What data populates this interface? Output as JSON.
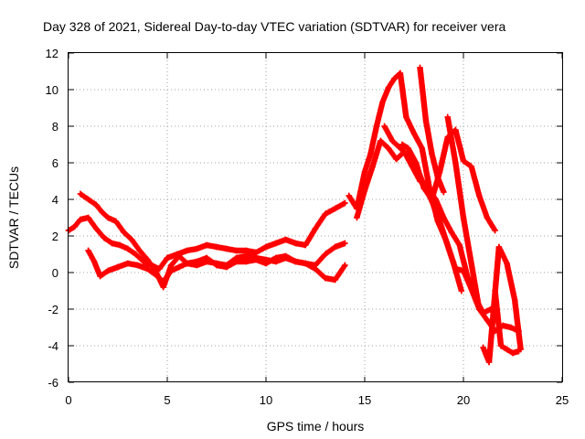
{
  "chart_data": {
    "type": "scatter",
    "title": "Day 328 of 2021, Sidereal Day-to-day VTEC variation (SDTVAR) for receiver vera",
    "xlabel": "GPS time / hours",
    "ylabel": "SDTVAR / TECUs",
    "xlim": [
      0,
      25
    ],
    "ylim": [
      -6,
      12
    ],
    "xticks": [
      "0",
      "5",
      "10",
      "15",
      "20",
      "25"
    ],
    "yticks": [
      "-6",
      "-4",
      "-2",
      "0",
      "2",
      "4",
      "6",
      "8",
      "10",
      "12"
    ],
    "grid": true,
    "marker": "plus",
    "series": [
      {
        "name": "track-1",
        "color": "#ff0000",
        "x": [
          0.0,
          0.3,
          0.6,
          1.0,
          1.4,
          1.8,
          2.2,
          2.6,
          3.0,
          3.4,
          3.8,
          4.2,
          4.6,
          5.0,
          5.5,
          6.0,
          6.5,
          7.0,
          7.5,
          8.0,
          8.5,
          9.0,
          9.5,
          10.0,
          10.5,
          11.0,
          11.5,
          12.0,
          12.5,
          13.0,
          13.5,
          14.0
        ],
        "y": [
          2.3,
          2.5,
          2.9,
          3.0,
          2.4,
          1.9,
          1.6,
          1.5,
          1.3,
          1.0,
          0.6,
          0.4,
          0.2,
          0.8,
          1.0,
          1.2,
          1.3,
          1.5,
          1.4,
          1.3,
          1.2,
          1.2,
          1.1,
          1.4,
          1.6,
          1.8,
          1.6,
          1.5,
          2.4,
          3.2,
          3.5,
          3.8
        ]
      },
      {
        "name": "track-2",
        "color": "#ff0000",
        "x": [
          0.6,
          1.0,
          1.4,
          1.7,
          2.0,
          2.4,
          2.8,
          3.2,
          3.6,
          4.0,
          4.4,
          4.8,
          5.2,
          5.6,
          6.0,
          6.5,
          7.0,
          7.5,
          8.0,
          8.5,
          9.0,
          9.5,
          10.0,
          10.5,
          11.0,
          11.5,
          12.0,
          12.5,
          13.0,
          13.5,
          14.0
        ],
        "y": [
          4.3,
          4.0,
          3.7,
          3.3,
          3.0,
          2.8,
          2.2,
          1.8,
          1.2,
          0.7,
          0.1,
          -0.8,
          0.4,
          0.9,
          0.5,
          0.6,
          0.8,
          0.4,
          0.3,
          0.6,
          0.6,
          0.7,
          0.5,
          0.8,
          0.9,
          0.6,
          0.5,
          0.4,
          1.0,
          1.4,
          1.6
        ]
      },
      {
        "name": "track-3",
        "color": "#ff0000",
        "x": [
          1.0,
          1.3,
          1.6,
          2.0,
          2.5,
          3.0,
          3.5,
          4.0,
          4.5,
          4.8,
          5.2,
          5.6,
          6.0,
          6.5,
          7.0,
          7.5,
          8.0,
          8.5,
          9.0,
          9.5,
          10.0,
          10.5,
          11.0,
          11.5,
          12.0,
          12.5,
          13.0,
          13.5,
          14.0
        ],
        "y": [
          1.2,
          0.6,
          -0.2,
          0.1,
          0.3,
          0.5,
          0.4,
          0.2,
          -0.2,
          -0.5,
          0.1,
          0.3,
          0.5,
          0.4,
          0.6,
          0.5,
          0.4,
          0.8,
          0.9,
          0.8,
          0.7,
          0.6,
          0.8,
          0.6,
          0.5,
          0.2,
          -0.3,
          -0.4,
          0.4
        ]
      },
      {
        "name": "track-4",
        "color": "#ff0000",
        "x": [
          14.2,
          14.6,
          15.0,
          15.3,
          15.6,
          15.9,
          16.2,
          16.5,
          16.8,
          17.1,
          17.5,
          17.9,
          18.3,
          18.7,
          19.1,
          19.5,
          19.9
        ],
        "y": [
          4.2,
          3.5,
          5.5,
          6.5,
          8.0,
          9.3,
          10.1,
          10.6,
          10.9,
          8.5,
          7.6,
          6.8,
          4.5,
          2.8,
          1.8,
          0.5,
          -1.0
        ]
      },
      {
        "name": "track-5",
        "color": "#ff0000",
        "x": [
          14.6,
          15.0,
          15.4,
          15.8,
          16.2,
          16.6,
          17.0,
          17.4,
          17.8,
          18.2,
          18.6,
          19.0,
          19.4,
          19.8,
          20.2,
          20.6,
          21.0,
          21.4
        ],
        "y": [
          3.0,
          4.5,
          5.8,
          7.2,
          6.8,
          6.2,
          6.6,
          5.8,
          5.0,
          4.6,
          4.0,
          3.0,
          2.2,
          1.5,
          -0.2,
          -1.4,
          -2.2,
          -2.0
        ]
      },
      {
        "name": "track-6",
        "color": "#ff0000",
        "x": [
          16.0,
          16.4,
          16.8,
          17.2,
          17.6,
          18.0,
          18.4,
          18.8,
          19.2,
          19.6,
          20.0,
          20.4,
          20.8,
          21.2,
          21.6,
          22.0,
          22.4,
          22.8
        ],
        "y": [
          8.0,
          7.2,
          6.8,
          6.4,
          5.8,
          4.8,
          3.9,
          2.8,
          1.5,
          0.2,
          0.1,
          -0.9,
          -2.0,
          -2.6,
          -3.2,
          -2.9,
          -3.0,
          -3.2
        ]
      },
      {
        "name": "track-7",
        "color": "#ff0000",
        "x": [
          16.9,
          17.2,
          17.6,
          18.0,
          18.4,
          18.8,
          19.2,
          19.6,
          20.0,
          20.4,
          20.8,
          21.2,
          21.6
        ],
        "y": [
          7.0,
          6.8,
          6.0,
          4.6,
          4.0,
          5.5,
          7.4,
          7.8,
          6.1,
          5.8,
          4.2,
          3.0,
          2.3
        ]
      },
      {
        "name": "track-8",
        "color": "#ff0000",
        "x": [
          17.8,
          18.1,
          18.4,
          18.7,
          19.0
        ],
        "y": [
          11.2,
          8.3,
          6.5,
          5.2,
          4.4
        ]
      },
      {
        "name": "track-9",
        "color": "#ff0000",
        "x": [
          19.2,
          19.6,
          20.0,
          20.4,
          20.8
        ],
        "y": [
          8.5,
          6.0,
          3.0,
          0.5,
          -2.0
        ]
      },
      {
        "name": "track-10",
        "color": "#ff0000",
        "x": [
          21.0,
          21.3,
          21.8,
          22.2,
          22.6,
          22.9
        ],
        "y": [
          -4.1,
          -4.9,
          1.4,
          0.5,
          -1.5,
          -4.2
        ]
      },
      {
        "name": "track-11",
        "color": "#ff0000",
        "x": [
          21.6,
          21.9,
          22.2,
          22.5,
          22.8
        ],
        "y": [
          -1.0,
          -4.0,
          -4.2,
          -4.4,
          -4.3
        ]
      }
    ]
  }
}
